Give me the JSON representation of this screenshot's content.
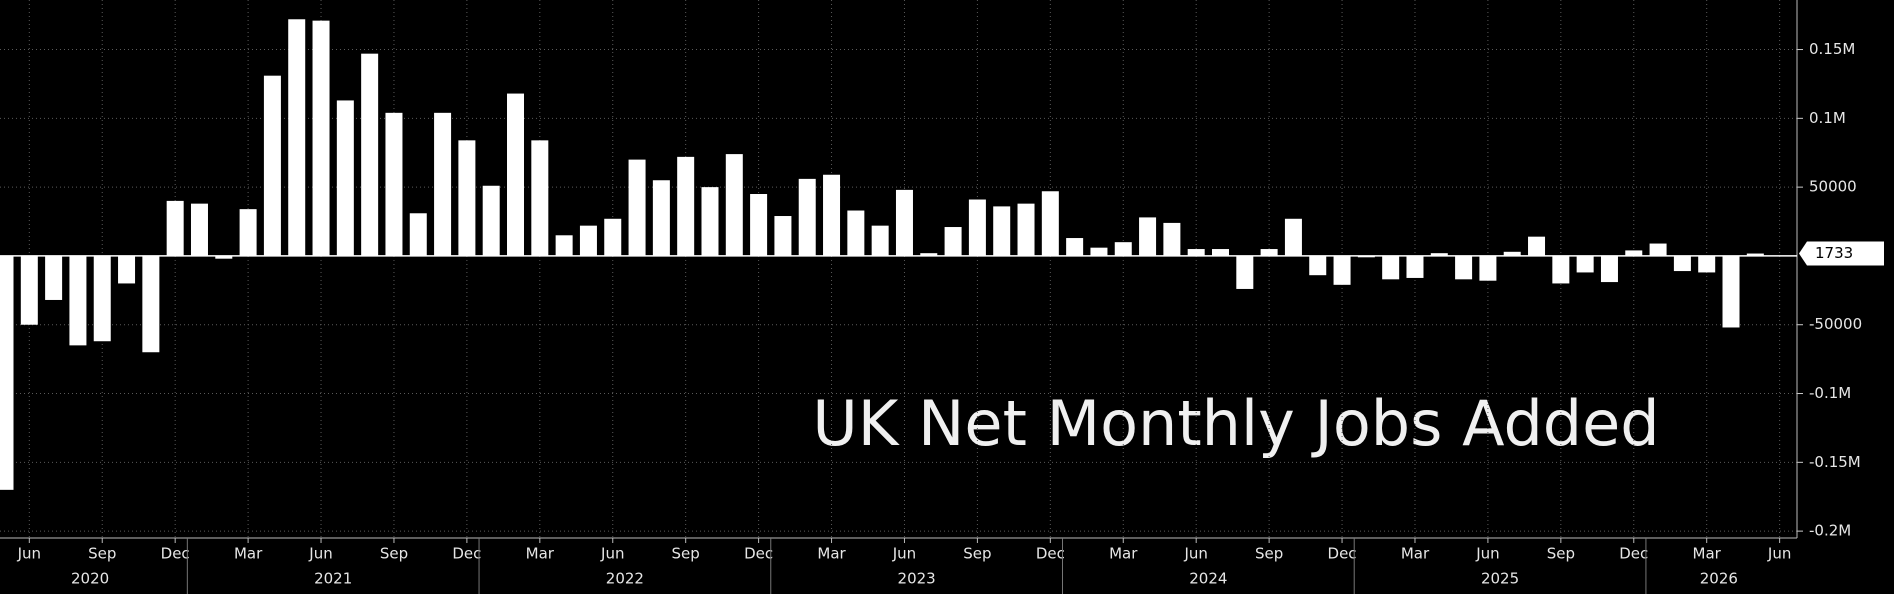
{
  "chart_data": {
    "type": "bar",
    "annotation": "UK Net Monthly Jobs Added",
    "color": "#ffffff",
    "categories": [
      null,
      "Jun",
      null,
      null,
      "Sep",
      null,
      null,
      "Dec",
      null,
      null,
      "Mar",
      null,
      null,
      "Jun",
      null,
      null,
      "Sep",
      null,
      null,
      "Dec",
      null,
      null,
      "Mar",
      null,
      null,
      "Jun",
      null,
      null,
      "Sep",
      null,
      null,
      "Dec",
      null,
      null,
      "Mar",
      null,
      null,
      "Jun",
      null,
      null,
      "Sep",
      null,
      null,
      "Dec",
      null,
      null,
      "Mar",
      null,
      null,
      "Jun",
      null,
      null,
      "Sep",
      null,
      null,
      "Dec",
      null,
      null,
      "Mar",
      null,
      null,
      "Jun",
      null,
      null,
      "Sep",
      null,
      null,
      "Dec",
      null,
      null,
      "Mar",
      null,
      null,
      "Jun"
    ],
    "years": [
      "2020",
      "2021",
      "2022",
      "2023",
      "2024",
      "2025",
      "2026"
    ],
    "values": [
      -170000,
      -50000,
      -32000,
      -65000,
      -62000,
      -20000,
      -70000,
      40000,
      38000,
      -2000,
      34000,
      131000,
      172000,
      171000,
      113000,
      147000,
      104000,
      31000,
      104000,
      84000,
      51000,
      118000,
      84000,
      15000,
      22000,
      27000,
      70000,
      55000,
      72000,
      50000,
      74000,
      45000,
      29000,
      56000,
      59000,
      33000,
      22000,
      48000,
      2000,
      21000,
      41000,
      36000,
      38000,
      47000,
      13000,
      6000,
      10000,
      28000,
      24000,
      5000,
      5000,
      -24000,
      5000,
      27000,
      -14000,
      -21000,
      -1000,
      -17000,
      -16000,
      2000,
      -17000,
      -18000,
      3000,
      14000,
      -20000,
      -12000,
      -19000,
      4000,
      9000,
      -11000,
      -12000,
      -52000,
      1733,
      null
    ],
    "ylim": [
      -205000,
      186000
    ],
    "yticks": [
      {
        "value": 150000,
        "label": "0.15M"
      },
      {
        "value": 100000,
        "label": "0.1M"
      },
      50000,
      -50000,
      {
        "value": -100000,
        "label": "-0.1M"
      },
      {
        "value": -150000,
        "label": "-0.15M"
      },
      {
        "value": -200000,
        "label": "-0.2M"
      }
    ],
    "grid": true
  }
}
